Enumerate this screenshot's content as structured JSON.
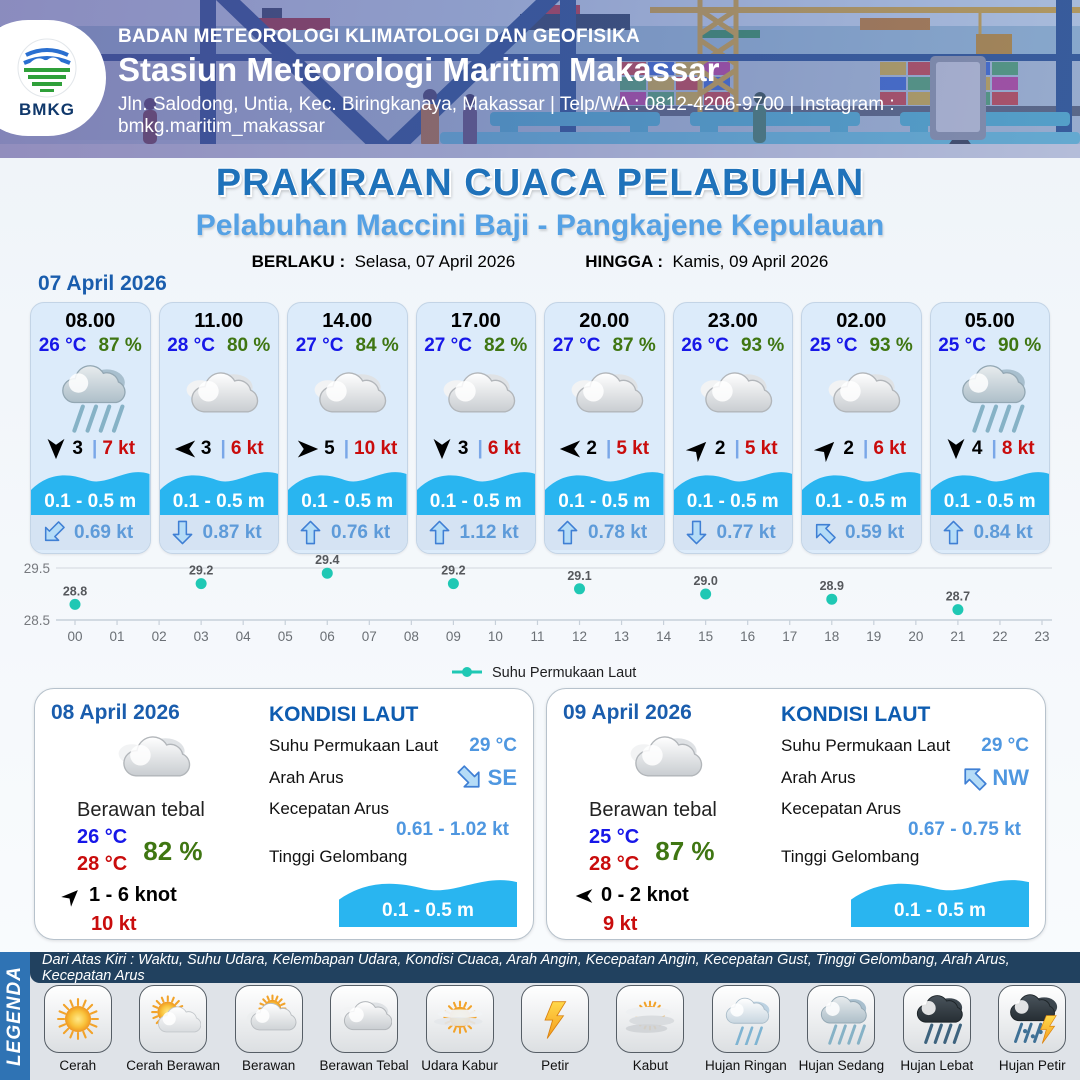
{
  "header": {
    "logo_text": "BMKG",
    "org": "BADAN METEOROLOGI KLIMATOLOGI DAN GEOFISIKA",
    "station": "Stasiun Meteorologi Maritim Makassar",
    "address": "Jln. Salodong, Untia, Kec. Biringkanaya, Makassar | Telp/WA : 0812-4206-9700 | Instagram : bmkg.maritim_makassar"
  },
  "title": {
    "main": "PRAKIRAAN CUACA PELABUHAN",
    "subtitle": "Pelabuhan Maccini Baji - Pangkajene Kepulauan",
    "berlaku_label": "BERLAKU :",
    "berlaku_value": "Selasa, 07 April 2026",
    "hingga_label": "HINGGA :",
    "hingga_value": "Kamis, 09 April 2026"
  },
  "forecast_date": "07 April 2026",
  "forecast_cards": [
    {
      "time": "08.00",
      "temp": "26 °C",
      "humidity": "87 %",
      "weather": "hujan-sedang",
      "wind_dir": "S",
      "wind_speed": "3",
      "gust": "7 kt",
      "wave": "0.1 - 0.5 m",
      "current_dir": "SW",
      "current_speed": "0.69 kt"
    },
    {
      "time": "11.00",
      "temp": "28 °C",
      "humidity": "80 %",
      "weather": "berawan-tebal",
      "wind_dir": "W",
      "wind_speed": "3",
      "gust": "6 kt",
      "wave": "0.1 - 0.5 m",
      "current_dir": "S",
      "current_speed": "0.87 kt"
    },
    {
      "time": "14.00",
      "temp": "27 °C",
      "humidity": "84 %",
      "weather": "berawan-tebal",
      "wind_dir": "E",
      "wind_speed": "5",
      "gust": "10 kt",
      "wave": "0.1 - 0.5 m",
      "current_dir": "N",
      "current_speed": "0.76 kt"
    },
    {
      "time": "17.00",
      "temp": "27 °C",
      "humidity": "82 %",
      "weather": "berawan-tebal",
      "wind_dir": "S",
      "wind_speed": "3",
      "gust": "6 kt",
      "wave": "0.1 - 0.5 m",
      "current_dir": "N",
      "current_speed": "1.12 kt"
    },
    {
      "time": "20.00",
      "temp": "27 °C",
      "humidity": "87 %",
      "weather": "berawan-tebal",
      "wind_dir": "W",
      "wind_speed": "2",
      "gust": "5 kt",
      "wave": "0.1 - 0.5 m",
      "current_dir": "N",
      "current_speed": "0.78 kt"
    },
    {
      "time": "23.00",
      "temp": "26 °C",
      "humidity": "93 %",
      "weather": "berawan-tebal",
      "wind_dir": "NE",
      "wind_speed": "2",
      "gust": "5 kt",
      "wave": "0.1 - 0.5 m",
      "current_dir": "S",
      "current_speed": "0.77 kt"
    },
    {
      "time": "02.00",
      "temp": "25 °C",
      "humidity": "93 %",
      "weather": "berawan-tebal",
      "wind_dir": "NE",
      "wind_speed": "2",
      "gust": "6 kt",
      "wave": "0.1 - 0.5 m",
      "current_dir": "NW",
      "current_speed": "0.59 kt"
    },
    {
      "time": "05.00",
      "temp": "25 °C",
      "humidity": "90 %",
      "weather": "hujan-sedang",
      "wind_dir": "S",
      "wind_speed": "4",
      "gust": "8 kt",
      "wave": "0.1 - 0.5 m",
      "current_dir": "N",
      "current_speed": "0.84 kt"
    }
  ],
  "chart_data": {
    "type": "scatter",
    "title": "",
    "xlabel": "",
    "ylabel": "",
    "x": [
      0,
      3,
      6,
      9,
      12,
      15,
      18,
      21
    ],
    "values": [
      28.8,
      29.2,
      29.4,
      29.2,
      29.1,
      29.0,
      28.9,
      28.7
    ],
    "point_labels": [
      "28.8",
      "29.2",
      "29.4",
      "29.2",
      "29.1",
      "29.0",
      "28.9",
      "28.7"
    ],
    "x_ticks": [
      "00",
      "01",
      "02",
      "03",
      "04",
      "05",
      "06",
      "07",
      "08",
      "09",
      "10",
      "11",
      "12",
      "13",
      "14",
      "15",
      "16",
      "17",
      "18",
      "19",
      "20",
      "21",
      "22",
      "23"
    ],
    "y_ticks": [
      "29.5",
      "28.5"
    ],
    "ylim": [
      28.3,
      29.6
    ],
    "grid": true,
    "legend": "Suhu Permukaan Laut",
    "legend_position": "bottom-center",
    "marker_color": "#1fc8b4"
  },
  "day_cards": [
    {
      "date": "08 April 2026",
      "weather": "berawan-tebal",
      "weather_label": "Berawan tebal",
      "temp_min": "26 °C",
      "temp_max": "28 °C",
      "humidity": "82 %",
      "wind_dir": "NE",
      "wind_range": "1  - 6 knot",
      "gust": "10 kt",
      "kondisi_title": "KONDISI LAUT",
      "sst_label": "Suhu Permukaan Laut",
      "sst_value": "29 °C",
      "arus_dir_label": "Arah Arus",
      "arus_dir": "SE",
      "arus_speed_label": "Kecepatan Arus",
      "arus_speed": "0.61  - 1.02 kt",
      "wave_label": "Tinggi Gelombang",
      "wave_value": "0.1 - 0.5 m"
    },
    {
      "date": "09 April 2026",
      "weather": "berawan-tebal",
      "weather_label": "Berawan tebal",
      "temp_min": "25 °C",
      "temp_max": "28 °C",
      "humidity": "87 %",
      "wind_dir": "W",
      "wind_range": "0  - 2 knot",
      "gust": "9 kt",
      "kondisi_title": "KONDISI LAUT",
      "sst_label": "Suhu Permukaan Laut",
      "sst_value": "29 °C",
      "arus_dir_label": "Arah Arus",
      "arus_dir": "NW",
      "arus_speed_label": "Kecepatan Arus",
      "arus_speed": "0.67  - 0.75 kt",
      "wave_label": "Tinggi Gelombang",
      "wave_value": "0.1 - 0.5 m"
    }
  ],
  "legend": {
    "title": "LEGENDA",
    "description": "Dari Atas Kiri : Waktu, Suhu Udara, Kelembapan Udara, Kondisi Cuaca, Arah Angin, Kecepatan Angin, Kecepatan Gust, Tinggi Gelombang, Arah Arus, Kecepatan Arus",
    "items": [
      {
        "label": "Cerah",
        "icon": "cerah"
      },
      {
        "label": "Cerah Berawan",
        "icon": "cerah-berawan"
      },
      {
        "label": "Berawan",
        "icon": "berawan"
      },
      {
        "label": "Berawan Tebal",
        "icon": "berawan-tebal"
      },
      {
        "label": "Udara Kabur",
        "icon": "udara-kabur"
      },
      {
        "label": "Petir",
        "icon": "petir"
      },
      {
        "label": "Kabut",
        "icon": "kabut"
      },
      {
        "label": "Hujan Ringan",
        "icon": "hujan-ringan"
      },
      {
        "label": "Hujan Sedang",
        "icon": "hujan-sedang"
      },
      {
        "label": "Hujan Lebat",
        "icon": "hujan-lebat"
      },
      {
        "label": "Hujan Petir",
        "icon": "hujan-petir"
      }
    ]
  },
  "colors": {
    "temp_blue": "#1717e8",
    "humidity_green": "#3f7612",
    "gust_red": "#c90c0c",
    "wave_blue": "#29b5f0",
    "marker_teal": "#1fc8b4",
    "title_blue": "#1f72ba",
    "subtitle_blue": "#55a1e4",
    "value_blue": "#4f97e0",
    "heading_blue": "#1a5dad"
  }
}
